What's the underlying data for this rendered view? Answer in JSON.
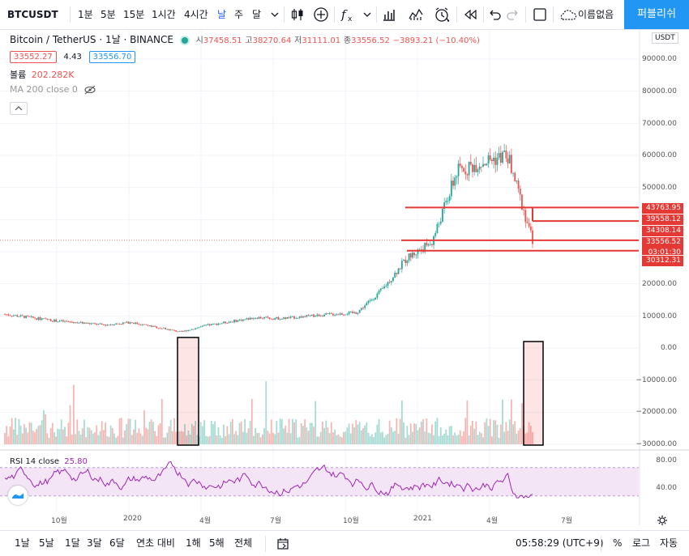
{
  "topbar": {
    "symbol": "BTCUSDT",
    "intervals": [
      "1분",
      "5분",
      "15분",
      "1시간",
      "4시간",
      "날",
      "주",
      "달"
    ],
    "active_interval": "날",
    "unnamed": "이름없음",
    "publish": "퍼블리쉬"
  },
  "legend": {
    "title": "Bitcoin / TetherUS · 1날 · BINANCE",
    "o_label": "시",
    "o_value": "37458.51",
    "h_label": "고",
    "h_value": "38270.64",
    "l_label": "저",
    "l_value": "31111.01",
    "c_label": "종",
    "c_value": "33556.52",
    "change": "−3893.21 (−10.40%)",
    "bid": "33552.27",
    "spread": "4.43",
    "ask": "33556.70",
    "volume_label": "볼륨",
    "volume_value": "202.282K",
    "ma": "MA 200 close 0"
  },
  "price_axis": {
    "currency": "USDT",
    "ticks": [
      "90000.00",
      "80000.00",
      "70000.00",
      "60000.00",
      "50000.00",
      "40000.00",
      "30000.00",
      "20000.00",
      "10000.00",
      "0.00",
      "−10000.00",
      "−20000.00",
      "−30000.00"
    ],
    "labels": [
      {
        "price": "43763.95"
      },
      {
        "price": "39558.12"
      },
      {
        "price": "34308.14"
      },
      {
        "price": "33556.52",
        "countdown": "03:01:30"
      },
      {
        "price": "30312.31"
      }
    ]
  },
  "rsi": {
    "label": "RSI 14 close",
    "value": "25.80",
    "ticks": [
      "80.00",
      "40.00"
    ]
  },
  "time_axis": {
    "labels": [
      "10월",
      "2020",
      "4월",
      "7월",
      "10월",
      "2021",
      "4월",
      "7월"
    ]
  },
  "bottombar": {
    "ranges": [
      "1날",
      "5날",
      "1달",
      "3달",
      "6달",
      "연초 대비",
      "1해",
      "5해",
      "전체"
    ],
    "clock": "05:58:29 (UTC+9)",
    "percent": "%",
    "log": "로그",
    "auto": "자동"
  },
  "chart_data": {
    "type": "candlestick",
    "symbol": "BTCUSDT",
    "interval": "1D",
    "x": [
      "2019-08",
      "2019-10",
      "2019-12",
      "2020-01",
      "2020-03",
      "2020-04",
      "2020-06",
      "2020-07",
      "2020-09",
      "2020-10",
      "2020-11",
      "2020-12",
      "2021-01",
      "2021-02",
      "2021-03",
      "2021-04",
      "2021-05"
    ],
    "close": [
      10500,
      8500,
      7200,
      8000,
      5000,
      7000,
      9500,
      9200,
      10500,
      11000,
      18000,
      28000,
      33000,
      55000,
      58000,
      60000,
      33556
    ],
    "horizontal_levels": [
      43763.95,
      39558.12,
      34308.14,
      33556.52,
      30312.31
    ],
    "ylim": [
      -30000,
      90000
    ],
    "volume_highlights": [
      "2020-03",
      "2021-05"
    ],
    "rsi": {
      "period": 14,
      "last": 25.8,
      "ylim": [
        20,
        90
      ],
      "band": [
        30,
        70
      ]
    }
  },
  "colors": {
    "up": "#26a69a",
    "down": "#ef5350",
    "accent": "#2962ff",
    "level": "#e53935",
    "rsi": "#9c27b0",
    "rsi_band": "#f3e5f5",
    "publish": "#2196f3"
  }
}
